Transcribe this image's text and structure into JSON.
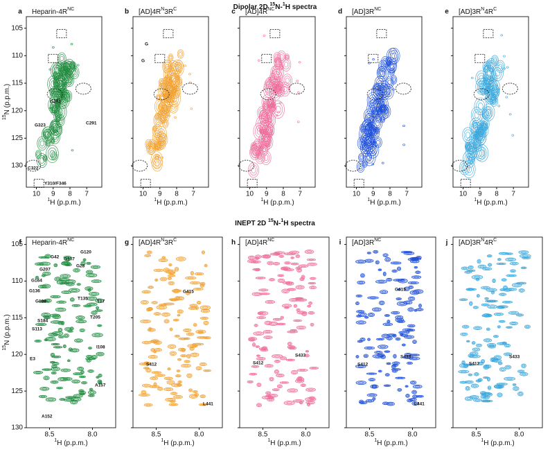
{
  "rows": [
    {
      "title": [
        {
          "text": "Dipolar 2D "
        },
        {
          "sup": "15"
        },
        {
          "text": "N-"
        },
        {
          "sup": "1"
        },
        {
          "text": "H spectra"
        }
      ],
      "ylabel": [
        {
          "sup": "15"
        },
        {
          "text": "N (p.p.m.)"
        }
      ],
      "xlabel": [
        {
          "sup": "1"
        },
        {
          "text": "H (p.p.m.)"
        }
      ],
      "xlim": [
        10.6,
        6.1
      ],
      "ylim": [
        102.9,
        133.9
      ],
      "xticks": [
        10,
        9,
        8,
        7
      ],
      "yticks": [
        105,
        110,
        115,
        120,
        125,
        130
      ],
      "panels": [
        {
          "letter": "a",
          "title": [
            {
              "text": "Heparin-4R"
            },
            {
              "sup": "NC"
            }
          ],
          "color": "#1e8b3e",
          "annotations": [
            "G292",
            "G323",
            "C291",
            "C322",
            "Y310/F346"
          ]
        },
        {
          "letter": "b",
          "title": [
            {
              "text": "[AD]4R"
            },
            {
              "sup": "N"
            },
            {
              "text": "3R"
            },
            {
              "sup": "C"
            }
          ],
          "color": "#f0a030",
          "annotations": [
            "G",
            "G"
          ]
        },
        {
          "letter": "c",
          "title": [
            {
              "text": "[AD]4R"
            },
            {
              "sup": "NC"
            }
          ],
          "color": "#ee6c9a",
          "annotations": []
        },
        {
          "letter": "d",
          "title": [
            {
              "text": "[AD]3R"
            },
            {
              "sup": "NC"
            }
          ],
          "color": "#1f4fd8",
          "annotations": []
        },
        {
          "letter": "e",
          "title": [
            {
              "text": "[AD]3R"
            },
            {
              "sup": "N"
            },
            {
              "text": "4R"
            },
            {
              "sup": "C"
            }
          ],
          "color": "#3aa7dc",
          "annotations": []
        }
      ]
    },
    {
      "title": [
        {
          "text": "INEPT 2D "
        },
        {
          "sup": "15"
        },
        {
          "text": "N-"
        },
        {
          "sup": "1"
        },
        {
          "text": "H spectra"
        }
      ],
      "ylabel": [
        {
          "sup": "15"
        },
        {
          "text": "N (p.p.m.)"
        }
      ],
      "xlabel": [
        {
          "sup": "1"
        },
        {
          "text": "H (p.p.m.)"
        }
      ],
      "xlim": [
        8.77,
        7.73
      ],
      "ylim": [
        104,
        130
      ],
      "xticks": [
        8.5,
        {
          "value": 8,
          "label": "8.0"
        }
      ],
      "yticks": [
        105,
        110,
        115,
        120,
        125,
        130
      ],
      "panels": [
        {
          "letter": "f",
          "title": [
            {
              "text": "Heparin-4R"
            },
            {
              "sup": "NC"
            }
          ],
          "color": "#1e8b3e",
          "annotations": [
            "G42",
            "G120",
            "G107",
            "G28",
            "G207",
            "G164",
            "G136",
            "G109",
            "T135",
            "T17",
            "S184",
            "T205",
            "S113",
            "I108",
            "E3",
            "A157",
            "A152"
          ]
        },
        {
          "letter": "g",
          "title": [
            {
              "text": "[AD]4R"
            },
            {
              "sup": "N"
            },
            {
              "text": "3R"
            },
            {
              "sup": "C"
            }
          ],
          "color": "#f0a030",
          "annotations": [
            "G415",
            "S412",
            "L441"
          ]
        },
        {
          "letter": "h",
          "title": [
            {
              "text": "[AD]4R"
            },
            {
              "sup": "NC"
            }
          ],
          "color": "#ee6c9a",
          "annotations": [
            "S412",
            "S433"
          ]
        },
        {
          "letter": "i",
          "title": [
            {
              "text": "[AD]3R"
            },
            {
              "sup": "NC"
            }
          ],
          "color": "#1f4fd8",
          "annotations": [
            "G415",
            "S412",
            "S433",
            "L441"
          ]
        },
        {
          "letter": "j",
          "title": [
            {
              "text": "[AD]3R"
            },
            {
              "sup": "N"
            },
            {
              "text": "4R"
            },
            {
              "sup": "C"
            }
          ],
          "color": "#3aa7dc",
          "annotations": [
            "S412",
            "S433"
          ]
        }
      ]
    }
  ]
}
